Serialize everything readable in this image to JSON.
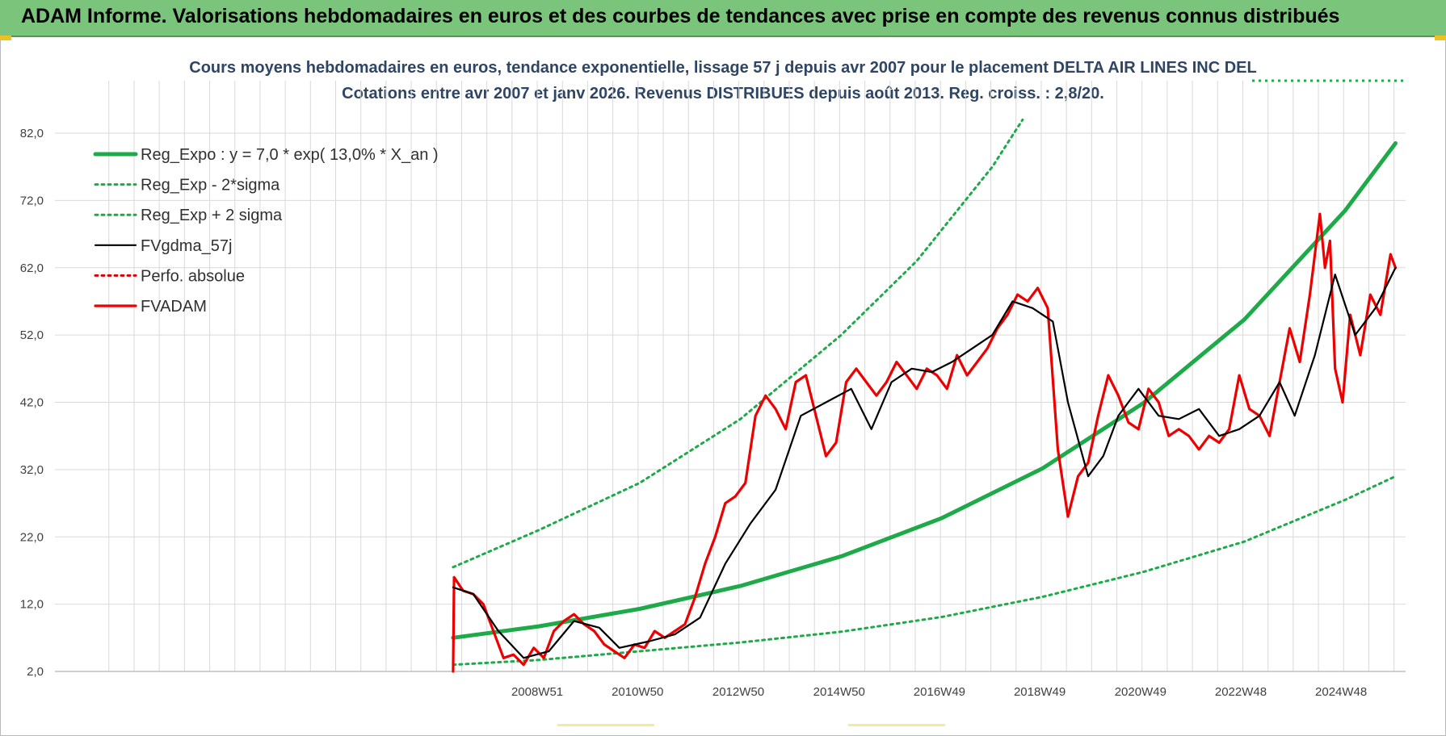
{
  "banner": {
    "title": "ADAM Informe. Valorisations hebdomadaires en euros et des courbes de tendances avec prise en compte des revenus connus distribués"
  },
  "colors": {
    "banner_bg": "#7bc47b",
    "reg_expo": "#1faa4a",
    "sigma_bands": "#1faa4a",
    "fvgdma": "#000000",
    "perfo": "#e00000",
    "fvadam": "#ee0000",
    "grid": "#d9d9d9"
  },
  "chart_data": {
    "type": "line",
    "title": "Cours moyens hebdomadaires en euros, tendance exponentielle, lissage 57 j depuis avr 2007 pour le placement DELTA AIR LINES INC DEL",
    "subtitle": "Cotations entre avr 2007 et janv 2026. Revenus DISTRIBUES depuis août 2013. Reg. croiss. : 2,8/20.",
    "xlabel": "",
    "ylabel": "",
    "ylim": [
      2,
      82
    ],
    "xlim": [
      1999.4,
      2026.2
    ],
    "yticks": [
      "2,0",
      "12,0",
      "22,0",
      "32,0",
      "42,0",
      "52,0",
      "62,0",
      "72,0",
      "82,0"
    ],
    "xticks": [
      {
        "label": "2008W51",
        "x": 2008.97
      },
      {
        "label": "2010W50",
        "x": 2010.96
      },
      {
        "label": "2012W50",
        "x": 2012.96
      },
      {
        "label": "2014W50",
        "x": 2014.96
      },
      {
        "label": "2016W49",
        "x": 2016.95
      },
      {
        "label": "2018W49",
        "x": 2018.94
      },
      {
        "label": "2020W49",
        "x": 2020.94
      },
      {
        "label": "2022W48",
        "x": 2022.93
      },
      {
        "label": "2024W48",
        "x": 2024.92
      }
    ],
    "grid": true,
    "legend_position": "top-left",
    "series": [
      {
        "name": "Reg_Expo : y = 7,0 * exp( 13,0% *  X_an )",
        "style": "solid-thick",
        "color": "#1faa4a",
        "x": [
          2007.3,
          2009.0,
          2011.0,
          2013.0,
          2015.0,
          2017.0,
          2019.0,
          2021.0,
          2023.0,
          2025.0,
          2026.0
        ],
        "y": [
          7.0,
          8.7,
          11.3,
          14.7,
          19.1,
          24.8,
          32.2,
          41.9,
          54.3,
          70.5,
          80.5
        ]
      },
      {
        "name": "Reg_Exp - 2*sigma",
        "style": "dotted",
        "color": "#1faa4a",
        "x": [
          2007.3,
          2009.0,
          2011.0,
          2013.0,
          2015.0,
          2017.0,
          2019.0,
          2021.0,
          2023.0,
          2025.0,
          2026.0
        ],
        "y": [
          3.0,
          3.7,
          5.0,
          6.3,
          7.9,
          10.1,
          13.1,
          16.8,
          21.3,
          27.5,
          31.0
        ]
      },
      {
        "name": "Reg_Exp + 2 sigma",
        "style": "dotted",
        "color": "#1faa4a",
        "x": [
          2007.3,
          2009.0,
          2011.0,
          2013.0,
          2015.0,
          2016.5,
          2018.0,
          2018.6
        ],
        "y": [
          17.5,
          23.0,
          30.0,
          39.5,
          52.0,
          63.0,
          77.0,
          84.0
        ]
      },
      {
        "name": "FVgdma_57j",
        "style": "solid",
        "color": "#000000",
        "x": [
          2007.3,
          2007.7,
          2008.2,
          2008.7,
          2009.2,
          2009.7,
          2010.2,
          2010.6,
          2011.2,
          2011.7,
          2012.2,
          2012.7,
          2013.2,
          2013.7,
          2014.2,
          2014.7,
          2015.2,
          2015.6,
          2016.0,
          2016.4,
          2016.8,
          2017.2,
          2017.6,
          2018.0,
          2018.4,
          2018.8,
          2019.2,
          2019.5,
          2019.9,
          2020.2,
          2020.5,
          2020.9,
          2021.3,
          2021.7,
          2022.1,
          2022.5,
          2022.9,
          2023.3,
          2023.7,
          2024.0,
          2024.4,
          2024.8,
          2025.2,
          2025.6,
          2026.0
        ],
        "y": [
          14.5,
          13.5,
          8.0,
          4.0,
          5.0,
          9.5,
          8.5,
          5.5,
          6.5,
          7.5,
          10.0,
          18.0,
          24.0,
          29.0,
          40.0,
          42.0,
          44.0,
          38.0,
          45.0,
          47.0,
          46.5,
          48.0,
          50.0,
          52.0,
          57.0,
          56.0,
          54.0,
          42.0,
          31.0,
          34.0,
          40.0,
          44.0,
          40.0,
          39.5,
          41.0,
          37.0,
          38.0,
          40.0,
          45.0,
          40.0,
          49.0,
          61.0,
          52.0,
          56.0,
          62.0
        ]
      },
      {
        "name": "Perfo. absolue",
        "style": "dotted",
        "color": "#e00000",
        "x": [],
        "y": []
      },
      {
        "name": "FVADAM",
        "style": "solid-thick",
        "color": "#ee0000",
        "x": [
          2007.3,
          2007.32,
          2007.5,
          2007.7,
          2007.9,
          2008.1,
          2008.3,
          2008.5,
          2008.7,
          2008.9,
          2009.1,
          2009.3,
          2009.5,
          2009.7,
          2009.9,
          2010.1,
          2010.3,
          2010.5,
          2010.7,
          2010.9,
          2011.1,
          2011.3,
          2011.5,
          2011.7,
          2011.9,
          2012.1,
          2012.3,
          2012.5,
          2012.7,
          2012.9,
          2013.1,
          2013.3,
          2013.5,
          2013.7,
          2013.9,
          2014.1,
          2014.3,
          2014.5,
          2014.7,
          2014.9,
          2015.1,
          2015.3,
          2015.5,
          2015.7,
          2015.9,
          2016.1,
          2016.3,
          2016.5,
          2016.7,
          2016.9,
          2017.1,
          2017.3,
          2017.5,
          2017.7,
          2017.9,
          2018.1,
          2018.3,
          2018.5,
          2018.7,
          2018.9,
          2019.1,
          2019.3,
          2019.5,
          2019.7,
          2019.9,
          2020.1,
          2020.3,
          2020.5,
          2020.7,
          2020.9,
          2021.1,
          2021.3,
          2021.5,
          2021.7,
          2021.9,
          2022.1,
          2022.3,
          2022.5,
          2022.7,
          2022.9,
          2023.1,
          2023.3,
          2023.5,
          2023.7,
          2023.9,
          2024.1,
          2024.3,
          2024.5,
          2024.6,
          2024.7,
          2024.8,
          2024.95,
          2025.1,
          2025.3,
          2025.5,
          2025.7,
          2025.9,
          2026.0
        ],
        "y": [
          2.0,
          16.0,
          14.0,
          13.5,
          12.0,
          8.0,
          4.0,
          4.5,
          3.0,
          5.5,
          4.0,
          8.0,
          9.5,
          10.5,
          9.0,
          8.0,
          6.0,
          5.0,
          4.0,
          6.0,
          5.5,
          8.0,
          7.0,
          8.0,
          9.0,
          13.0,
          18.0,
          22.0,
          27.0,
          28.0,
          30.0,
          40.0,
          43.0,
          41.0,
          38.0,
          45.0,
          46.0,
          40.0,
          34.0,
          36.0,
          45.0,
          47.0,
          45.0,
          43.0,
          45.0,
          48.0,
          46.0,
          44.0,
          47.0,
          46.0,
          44.0,
          49.0,
          46.0,
          48.0,
          50.0,
          53.0,
          55.0,
          58.0,
          57.0,
          59.0,
          56.0,
          35.0,
          25.0,
          31.0,
          33.0,
          40.0,
          46.0,
          43.0,
          39.0,
          38.0,
          44.0,
          42.0,
          37.0,
          38.0,
          37.0,
          35.0,
          37.0,
          36.0,
          38.0,
          46.0,
          41.0,
          40.0,
          37.0,
          45.0,
          53.0,
          48.0,
          58.0,
          70.0,
          62.0,
          66.0,
          47.0,
          42.0,
          55.0,
          49.0,
          58.0,
          55.0,
          64.0,
          62.0
        ]
      }
    ]
  }
}
